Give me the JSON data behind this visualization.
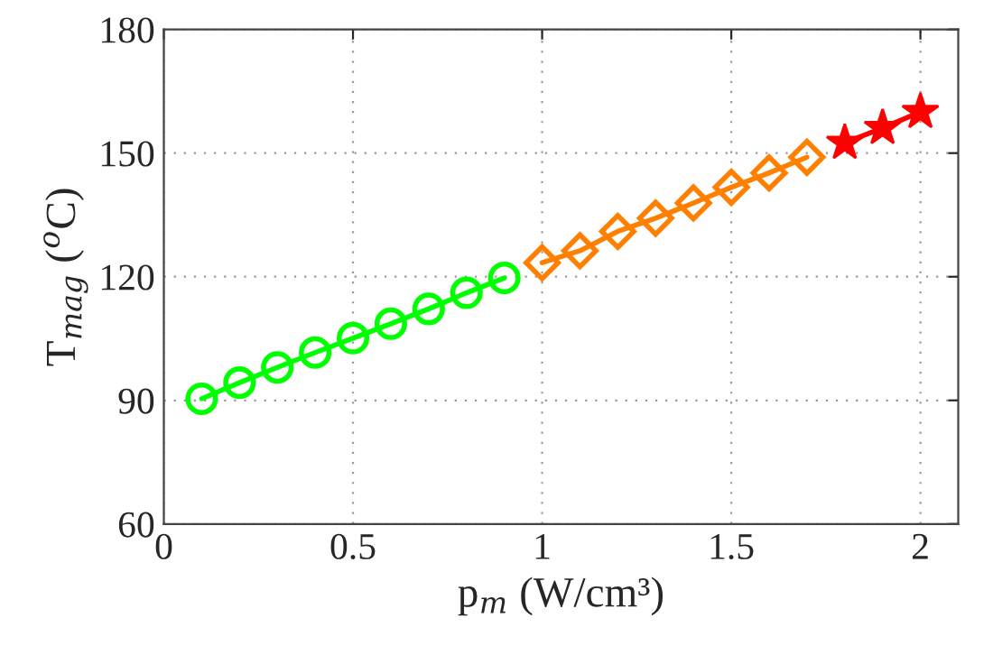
{
  "chart_data": {
    "type": "line",
    "xlabel": "p$_{m}$ (W/cm³)",
    "ylabel": "T$_{mag}$ ($^{o}$C)",
    "xlim": [
      0,
      2.1
    ],
    "xticks": [
      0,
      0.5,
      1,
      1.5,
      2
    ],
    "ylim": [
      60,
      180
    ],
    "yticks": [
      60,
      90,
      120,
      150,
      180
    ],
    "grid": true,
    "line_style": "solid",
    "series": [
      {
        "color": "#00ff00",
        "marker": "circle",
        "x": [
          0.1,
          0.2,
          0.3,
          0.4,
          0.5,
          0.6,
          0.7,
          0.8,
          0.9
        ],
        "values": [
          90.4,
          94.3,
          98.0,
          101.6,
          105.1,
          108.6,
          112.2,
          116.1,
          119.7
        ]
      },
      {
        "color": "#ff8000",
        "marker": "diamond",
        "x": [
          1.0,
          1.1,
          1.2,
          1.3,
          1.4,
          1.5,
          1.6,
          1.7
        ],
        "values": [
          123.4,
          126.3,
          131.0,
          134.2,
          137.9,
          141.7,
          145.2,
          149.0
        ]
      },
      {
        "color": "#ff0000",
        "marker": "star",
        "x": [
          1.8,
          1.9,
          2.0
        ],
        "values": [
          152.5,
          156.1,
          160.0
        ]
      }
    ]
  }
}
